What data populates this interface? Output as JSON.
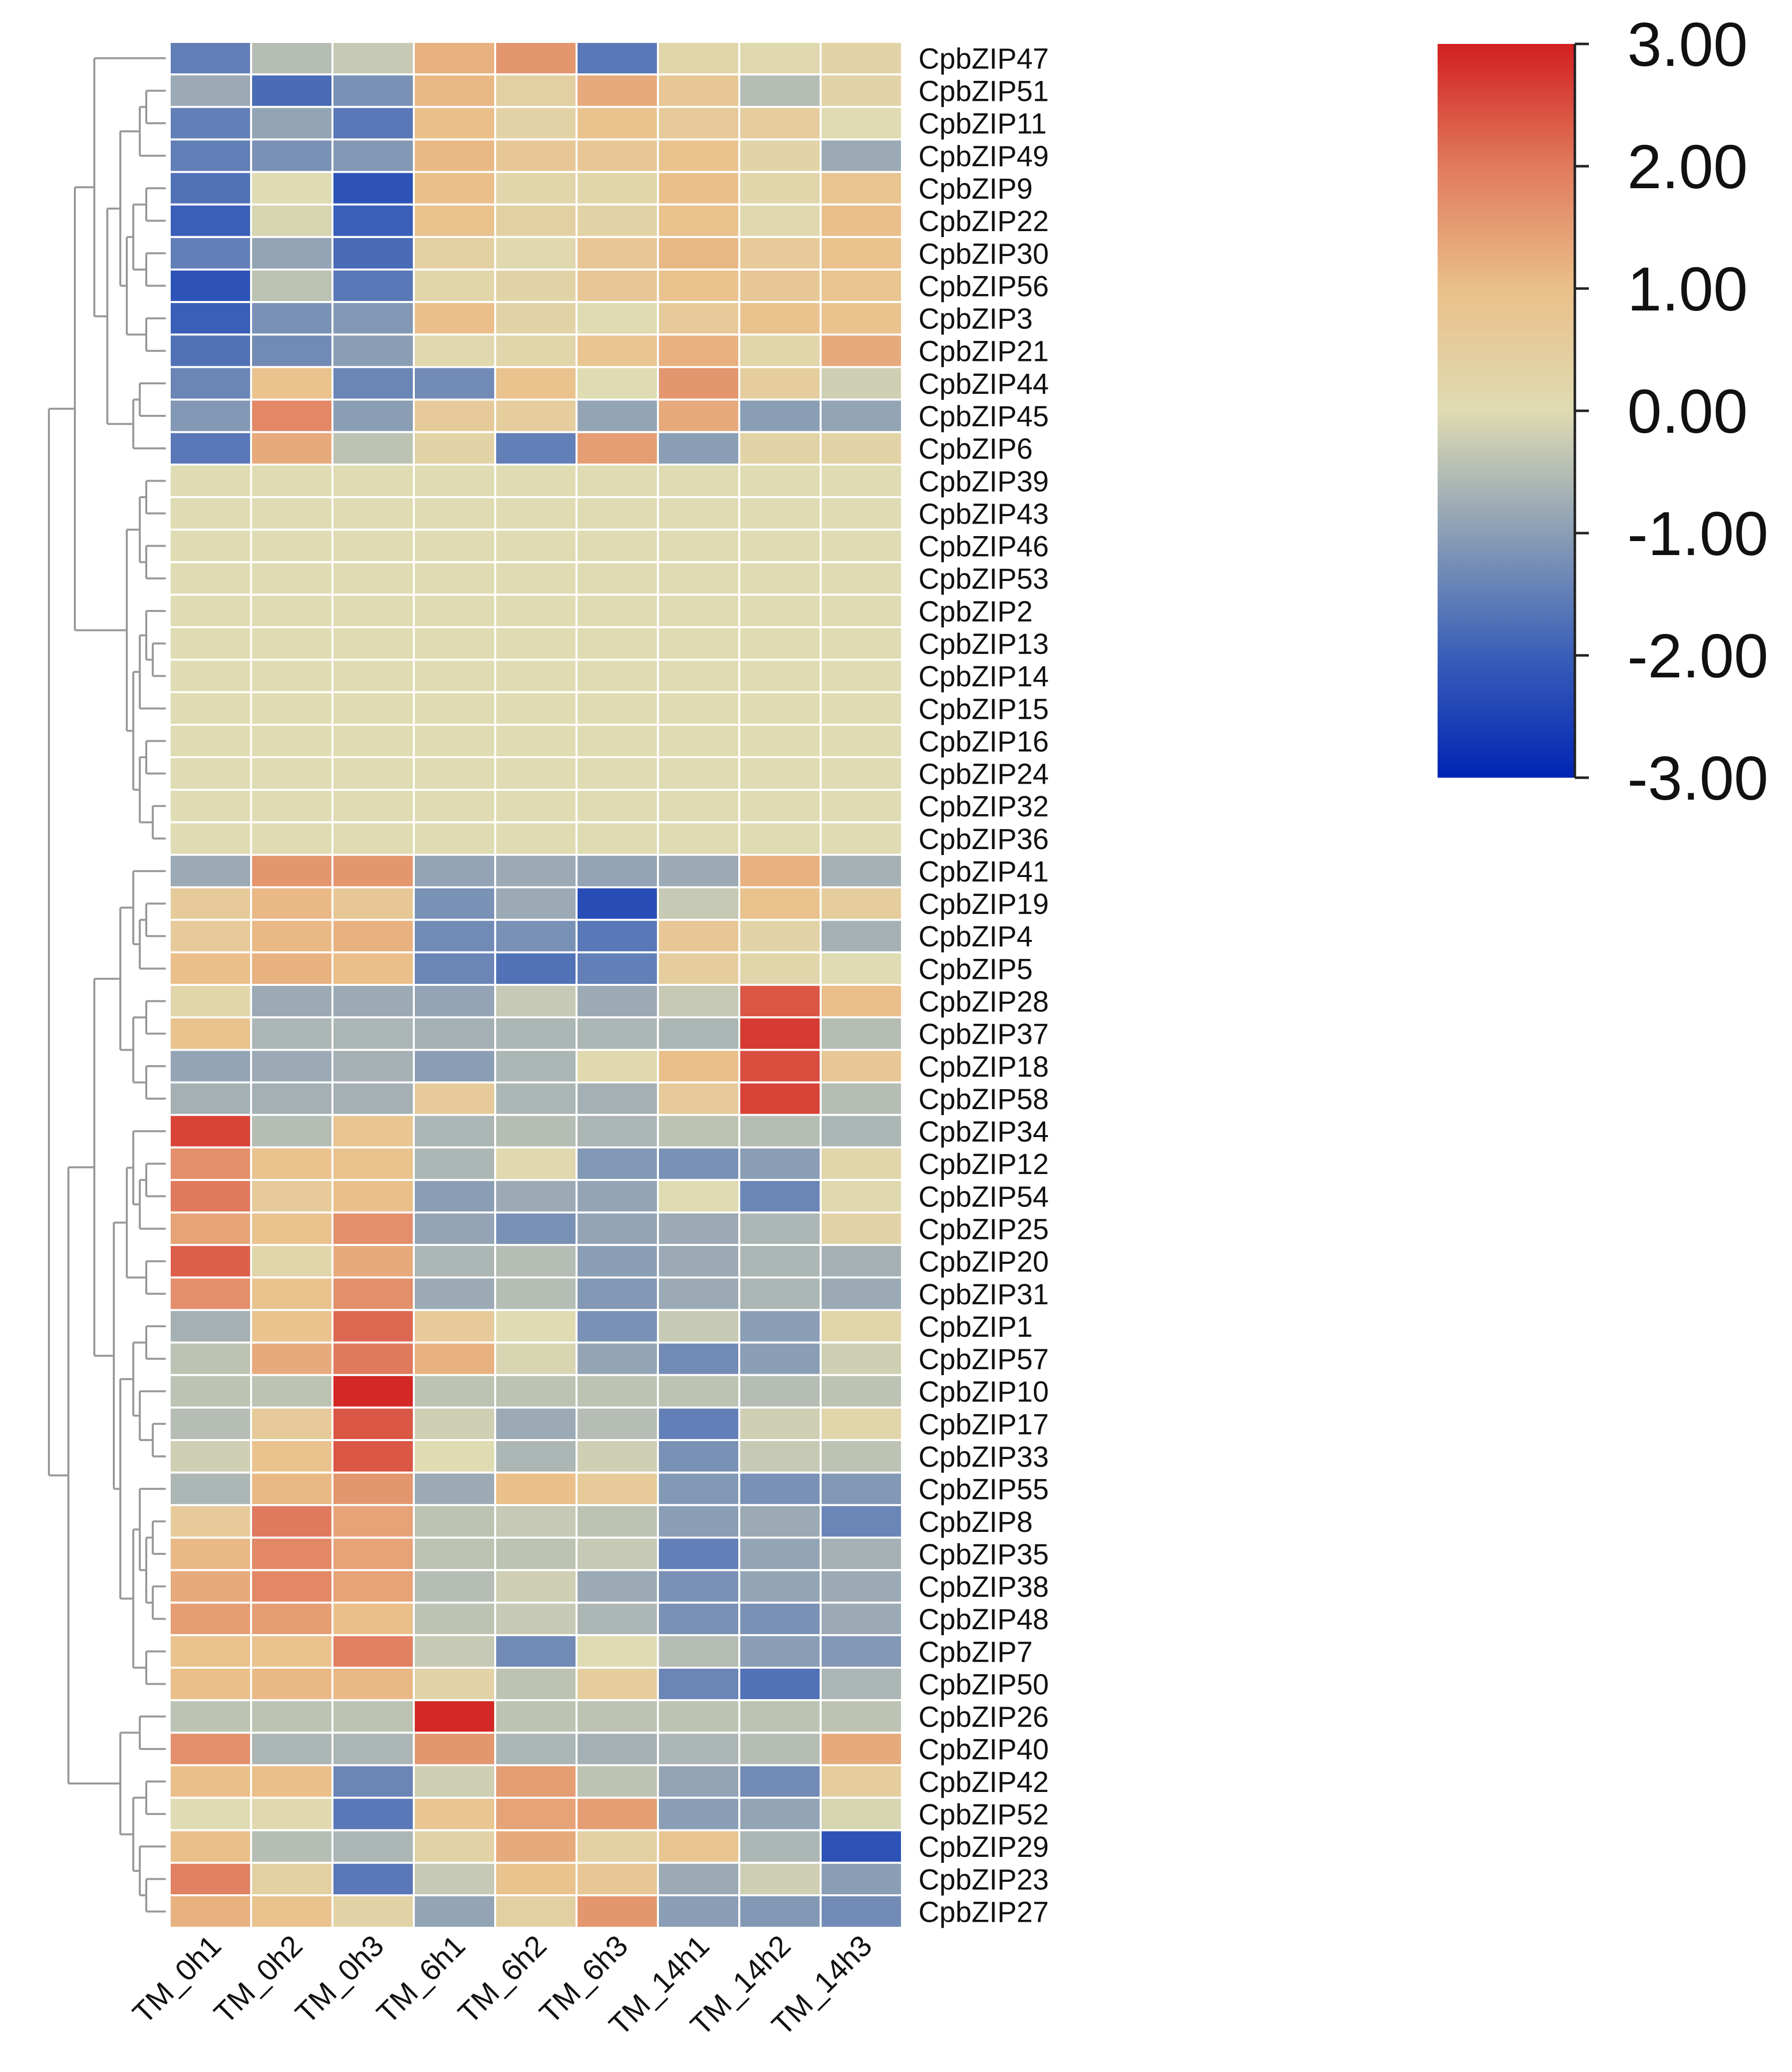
{
  "chart_data": {
    "type": "heatmap",
    "columns": [
      "TM_0h1",
      "TM_0h2",
      "TM_0h3",
      "TM_6h1",
      "TM_6h2",
      "TM_6h3",
      "TM_14h1",
      "TM_14h2",
      "TM_14h3"
    ],
    "rows": [
      {
        "gene": "CpbZIP47",
        "values": [
          -1.5,
          -0.5,
          -0.3,
          1.2,
          1.6,
          -1.6,
          0.2,
          0.1,
          0.3
        ]
      },
      {
        "gene": "CpbZIP51",
        "values": [
          -0.8,
          -1.8,
          -1.2,
          1.1,
          0.4,
          1.3,
          0.7,
          -0.5,
          0.3
        ]
      },
      {
        "gene": "CpbZIP11",
        "values": [
          -1.5,
          -0.9,
          -1.6,
          1.0,
          0.3,
          0.9,
          0.6,
          0.5,
          0.0
        ]
      },
      {
        "gene": "CpbZIP49",
        "values": [
          -1.5,
          -1.2,
          -1.1,
          1.1,
          0.7,
          0.7,
          0.9,
          0.3,
          -0.8
        ]
      },
      {
        "gene": "CpbZIP9",
        "values": [
          -1.7,
          0.0,
          -2.2,
          1.0,
          0.2,
          0.2,
          1.0,
          0.2,
          0.8
        ]
      },
      {
        "gene": "CpbZIP22",
        "values": [
          -2.0,
          -0.1,
          -2.0,
          0.9,
          0.4,
          0.3,
          0.9,
          0.1,
          1.0
        ]
      },
      {
        "gene": "CpbZIP30",
        "values": [
          -1.5,
          -0.9,
          -1.8,
          0.4,
          0.1,
          0.7,
          1.1,
          0.6,
          0.9
        ]
      },
      {
        "gene": "CpbZIP56",
        "values": [
          -2.2,
          -0.4,
          -1.6,
          0.2,
          0.3,
          0.7,
          0.9,
          0.7,
          0.8
        ]
      },
      {
        "gene": "CpbZIP3",
        "values": [
          -2.0,
          -1.2,
          -1.1,
          1.0,
          0.3,
          0.0,
          0.6,
          0.9,
          0.9
        ]
      },
      {
        "gene": "CpbZIP21",
        "values": [
          -1.7,
          -1.3,
          -1.0,
          0.1,
          0.2,
          0.8,
          1.2,
          0.2,
          1.3
        ]
      },
      {
        "gene": "CpbZIP44",
        "values": [
          -1.4,
          0.9,
          -1.4,
          -1.3,
          0.9,
          0.0,
          1.6,
          0.5,
          -0.2
        ]
      },
      {
        "gene": "CpbZIP45",
        "values": [
          -1.1,
          1.8,
          -1.0,
          0.6,
          0.5,
          -0.9,
          1.3,
          -1.0,
          -0.9
        ]
      },
      {
        "gene": "CpbZIP6",
        "values": [
          -1.6,
          1.3,
          -0.4,
          0.3,
          -1.5,
          1.5,
          -1.0,
          0.3,
          0.3
        ]
      },
      {
        "gene": "CpbZIP39",
        "values": [
          0,
          0,
          0,
          0,
          0,
          0,
          0,
          0,
          0
        ]
      },
      {
        "gene": "CpbZIP43",
        "values": [
          0,
          0,
          0,
          0,
          0,
          0,
          0,
          0,
          0
        ]
      },
      {
        "gene": "CpbZIP46",
        "values": [
          0,
          0,
          0,
          0,
          0,
          0,
          0,
          0,
          0
        ]
      },
      {
        "gene": "CpbZIP53",
        "values": [
          0,
          0,
          0,
          0,
          0,
          0,
          0,
          0,
          0
        ]
      },
      {
        "gene": "CpbZIP2",
        "values": [
          0,
          0,
          0,
          0,
          0,
          0,
          0,
          0,
          0
        ]
      },
      {
        "gene": "CpbZIP13",
        "values": [
          0,
          0,
          0,
          0,
          0,
          0,
          0,
          0,
          0
        ]
      },
      {
        "gene": "CpbZIP14",
        "values": [
          0,
          0,
          0,
          0,
          0,
          0,
          0,
          0,
          0
        ]
      },
      {
        "gene": "CpbZIP15",
        "values": [
          0,
          0,
          0,
          0,
          0,
          0,
          0,
          0,
          0
        ]
      },
      {
        "gene": "CpbZIP16",
        "values": [
          0,
          0,
          0,
          0,
          0,
          0,
          0,
          0,
          0
        ]
      },
      {
        "gene": "CpbZIP24",
        "values": [
          0,
          0,
          0,
          0,
          0,
          0,
          0,
          0,
          0
        ]
      },
      {
        "gene": "CpbZIP32",
        "values": [
          0,
          0,
          0,
          0,
          0,
          0,
          0,
          0,
          0
        ]
      },
      {
        "gene": "CpbZIP36",
        "values": [
          0,
          0,
          0,
          0,
          0,
          0,
          0,
          0,
          0
        ]
      },
      {
        "gene": "CpbZIP41",
        "values": [
          -0.8,
          1.6,
          1.6,
          -0.9,
          -0.8,
          -0.9,
          -0.8,
          1.2,
          -0.7
        ]
      },
      {
        "gene": "CpbZIP19",
        "values": [
          0.6,
          1.1,
          0.7,
          -1.2,
          -0.8,
          -2.3,
          -0.3,
          0.9,
          0.5
        ]
      },
      {
        "gene": "CpbZIP4",
        "values": [
          0.6,
          1.1,
          1.2,
          -1.3,
          -1.2,
          -1.6,
          0.7,
          0.3,
          -0.7
        ]
      },
      {
        "gene": "CpbZIP5",
        "values": [
          1.0,
          1.2,
          1.0,
          -1.4,
          -1.7,
          -1.5,
          0.5,
          0.2,
          0.0
        ]
      },
      {
        "gene": "CpbZIP28",
        "values": [
          0.2,
          -0.8,
          -0.8,
          -0.9,
          -0.3,
          -0.8,
          -0.3,
          2.4,
          1.0
        ]
      },
      {
        "gene": "CpbZIP37",
        "values": [
          0.9,
          -0.6,
          -0.6,
          -0.7,
          -0.6,
          -0.6,
          -0.6,
          2.7,
          -0.5
        ]
      },
      {
        "gene": "CpbZIP18",
        "values": [
          -0.9,
          -0.8,
          -0.7,
          -1.0,
          -0.6,
          0.1,
          1.0,
          2.5,
          0.7
        ]
      },
      {
        "gene": "CpbZIP58",
        "values": [
          -0.7,
          -0.7,
          -0.7,
          0.6,
          -0.6,
          -0.7,
          0.6,
          2.6,
          -0.5
        ]
      },
      {
        "gene": "CpbZIP34",
        "values": [
          2.6,
          -0.5,
          0.8,
          -0.6,
          -0.5,
          -0.6,
          -0.4,
          -0.5,
          -0.6
        ]
      },
      {
        "gene": "CpbZIP12",
        "values": [
          1.7,
          0.9,
          0.9,
          -0.6,
          0.1,
          -1.1,
          -1.2,
          -1.0,
          0.2
        ]
      },
      {
        "gene": "CpbZIP54",
        "values": [
          2.0,
          0.6,
          1.0,
          -1.0,
          -0.8,
          -0.9,
          0.0,
          -1.4,
          0.1
        ]
      },
      {
        "gene": "CpbZIP25",
        "values": [
          1.4,
          0.9,
          1.7,
          -0.9,
          -1.2,
          -0.9,
          -0.8,
          -0.6,
          0.3
        ]
      },
      {
        "gene": "CpbZIP20",
        "values": [
          2.3,
          0.2,
          1.3,
          -0.6,
          -0.5,
          -1.0,
          -0.8,
          -0.6,
          -0.7
        ]
      },
      {
        "gene": "CpbZIP31",
        "values": [
          1.7,
          0.9,
          1.7,
          -0.8,
          -0.5,
          -1.1,
          -0.8,
          -0.6,
          -0.8
        ]
      },
      {
        "gene": "CpbZIP1",
        "values": [
          -0.7,
          0.9,
          2.2,
          0.6,
          0.0,
          -1.2,
          -0.3,
          -1.0,
          0.2
        ]
      },
      {
        "gene": "CpbZIP57",
        "values": [
          -0.4,
          1.3,
          2.0,
          1.2,
          -0.1,
          -0.9,
          -1.3,
          -1.0,
          -0.2
        ]
      },
      {
        "gene": "CpbZIP10",
        "values": [
          -0.4,
          -0.4,
          2.9,
          -0.4,
          -0.4,
          -0.4,
          -0.4,
          -0.5,
          -0.4
        ]
      },
      {
        "gene": "CpbZIP17",
        "values": [
          -0.5,
          0.6,
          2.4,
          -0.2,
          -0.8,
          -0.5,
          -1.5,
          -0.2,
          0.2
        ]
      },
      {
        "gene": "CpbZIP33",
        "values": [
          -0.2,
          0.9,
          2.4,
          0.0,
          -0.6,
          -0.2,
          -1.2,
          -0.3,
          -0.4
        ]
      },
      {
        "gene": "CpbZIP55",
        "values": [
          -0.6,
          1.1,
          1.6,
          -0.8,
          1.0,
          0.6,
          -1.1,
          -1.2,
          -1.1
        ]
      },
      {
        "gene": "CpbZIP8",
        "values": [
          0.6,
          2.0,
          1.4,
          -0.4,
          -0.3,
          -0.4,
          -1.0,
          -0.8,
          -1.4
        ]
      },
      {
        "gene": "CpbZIP35",
        "values": [
          1.1,
          1.8,
          1.4,
          -0.4,
          -0.4,
          -0.3,
          -1.5,
          -0.9,
          -0.7
        ]
      },
      {
        "gene": "CpbZIP38",
        "values": [
          1.3,
          1.8,
          1.4,
          -0.5,
          -0.2,
          -0.8,
          -1.2,
          -0.9,
          -0.8
        ]
      },
      {
        "gene": "CpbZIP48",
        "values": [
          1.5,
          1.5,
          1.0,
          -0.4,
          -0.3,
          -0.6,
          -1.2,
          -1.2,
          -0.8
        ]
      },
      {
        "gene": "CpbZIP7",
        "values": [
          0.9,
          0.9,
          1.9,
          -0.3,
          -1.3,
          0.0,
          -0.5,
          -1.0,
          -1.1
        ]
      },
      {
        "gene": "CpbZIP50",
        "values": [
          1.0,
          1.1,
          1.1,
          0.3,
          -0.4,
          0.5,
          -1.4,
          -1.7,
          -0.6
        ]
      },
      {
        "gene": "CpbZIP26",
        "values": [
          -0.4,
          -0.4,
          -0.4,
          2.9,
          -0.4,
          -0.4,
          -0.4,
          -0.4,
          -0.4
        ]
      },
      {
        "gene": "CpbZIP40",
        "values": [
          1.7,
          -0.6,
          -0.6,
          1.6,
          -0.6,
          -0.7,
          -0.6,
          -0.5,
          1.3
        ]
      },
      {
        "gene": "CpbZIP42",
        "values": [
          1.0,
          1.0,
          -1.4,
          -0.2,
          1.5,
          -0.4,
          -0.9,
          -1.3,
          0.5
        ]
      },
      {
        "gene": "CpbZIP52",
        "values": [
          0.0,
          0.1,
          -1.6,
          0.8,
          1.4,
          1.5,
          -1.0,
          -0.9,
          -0.1
        ]
      },
      {
        "gene": "CpbZIP29",
        "values": [
          1.0,
          -0.5,
          -0.6,
          0.3,
          1.3,
          0.4,
          0.8,
          -0.6,
          -2.2
        ]
      },
      {
        "gene": "CpbZIP23",
        "values": [
          1.9,
          0.4,
          -1.6,
          -0.3,
          0.9,
          0.7,
          -0.8,
          -0.2,
          -1.0
        ]
      },
      {
        "gene": "CpbZIP27",
        "values": [
          1.2,
          0.9,
          0.3,
          -0.9,
          0.4,
          1.6,
          -1.0,
          -1.1,
          -1.3
        ]
      }
    ],
    "color_scale": {
      "min": -3.0,
      "max": 3.0,
      "stops": [
        {
          "value": -3.0,
          "color": "#0024b4"
        },
        {
          "value": -2.0,
          "color": "#3a5fb8"
        },
        {
          "value": -1.0,
          "color": "#8a9eb5"
        },
        {
          "value": 0.0,
          "color": "#dfdbb2"
        },
        {
          "value": 1.0,
          "color": "#eabf89"
        },
        {
          "value": 2.0,
          "color": "#e07a5e"
        },
        {
          "value": 3.0,
          "color": "#d21f1f"
        }
      ],
      "tick_labels": [
        "3.00",
        "2.00",
        "1.00",
        "0.00",
        "-1.00",
        "-2.00",
        "-3.00"
      ]
    },
    "cell_border_color": "#ffffff",
    "dendrogram_color": "#999999",
    "legend_position": "top-right"
  }
}
